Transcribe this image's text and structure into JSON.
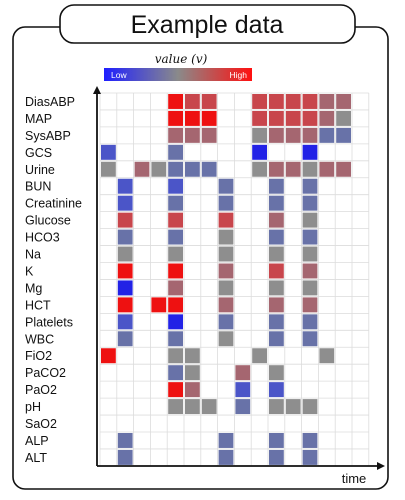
{
  "title": "Example data",
  "legend": {
    "title": "value (v)",
    "low_label": "Low",
    "high_label": "High",
    "low_color": "#1f1fff",
    "mid_color": "#8a8a8a",
    "high_color": "#ff1010"
  },
  "x_axis_label": "time",
  "rows": [
    "DiasABP",
    "MAP",
    "SysABP",
    "GCS",
    "Urine",
    "BUN",
    "Creatinine",
    "Glucose",
    "HCO3",
    "Na",
    "K",
    "Mg",
    "HCT",
    "Platelets",
    "WBC",
    "FiO2",
    "PaCO2",
    "PaO2",
    "pH",
    "SaO2",
    "ALP",
    "ALT"
  ],
  "palette": {
    "red": "#ee1111",
    "dred": "#c8464c",
    "mauve": "#a56670",
    "gray": "#8e8e8e",
    "slate": "#6872a8",
    "blue": "#4b55c8",
    "dblue": "#2222e6"
  },
  "cells": [
    [
      "DiasABP",
      4,
      "red"
    ],
    [
      "DiasABP",
      5,
      "dred"
    ],
    [
      "DiasABP",
      6,
      "dred"
    ],
    [
      "DiasABP",
      9,
      "dred"
    ],
    [
      "DiasABP",
      10,
      "dred"
    ],
    [
      "DiasABP",
      11,
      "dred"
    ],
    [
      "DiasABP",
      12,
      "dred"
    ],
    [
      "DiasABP",
      13,
      "mauve"
    ],
    [
      "DiasABP",
      14,
      "mauve"
    ],
    [
      "MAP",
      4,
      "red"
    ],
    [
      "MAP",
      5,
      "red"
    ],
    [
      "MAP",
      6,
      "red"
    ],
    [
      "MAP",
      9,
      "dred"
    ],
    [
      "MAP",
      10,
      "dred"
    ],
    [
      "MAP",
      11,
      "dred"
    ],
    [
      "MAP",
      12,
      "dred"
    ],
    [
      "MAP",
      13,
      "mauve"
    ],
    [
      "MAP",
      14,
      "gray"
    ],
    [
      "SysABP",
      4,
      "mauve"
    ],
    [
      "SysABP",
      5,
      "mauve"
    ],
    [
      "SysABP",
      6,
      "mauve"
    ],
    [
      "SysABP",
      9,
      "gray"
    ],
    [
      "SysABP",
      10,
      "mauve"
    ],
    [
      "SysABP",
      11,
      "mauve"
    ],
    [
      "SysABP",
      12,
      "mauve"
    ],
    [
      "SysABP",
      13,
      "slate"
    ],
    [
      "SysABP",
      14,
      "slate"
    ],
    [
      "GCS",
      0,
      "blue"
    ],
    [
      "GCS",
      4,
      "slate"
    ],
    [
      "GCS",
      9,
      "dblue"
    ],
    [
      "GCS",
      12,
      "dblue"
    ],
    [
      "Urine",
      0,
      "gray"
    ],
    [
      "Urine",
      2,
      "mauve"
    ],
    [
      "Urine",
      3,
      "gray"
    ],
    [
      "Urine",
      4,
      "slate"
    ],
    [
      "Urine",
      5,
      "slate"
    ],
    [
      "Urine",
      6,
      "slate"
    ],
    [
      "Urine",
      9,
      "gray"
    ],
    [
      "Urine",
      10,
      "mauve"
    ],
    [
      "Urine",
      11,
      "mauve"
    ],
    [
      "Urine",
      12,
      "gray"
    ],
    [
      "Urine",
      13,
      "mauve"
    ],
    [
      "Urine",
      14,
      "mauve"
    ],
    [
      "BUN",
      1,
      "blue"
    ],
    [
      "BUN",
      4,
      "blue"
    ],
    [
      "BUN",
      7,
      "slate"
    ],
    [
      "BUN",
      10,
      "slate"
    ],
    [
      "BUN",
      12,
      "slate"
    ],
    [
      "Creatinine",
      1,
      "blue"
    ],
    [
      "Creatinine",
      4,
      "slate"
    ],
    [
      "Creatinine",
      7,
      "slate"
    ],
    [
      "Creatinine",
      10,
      "slate"
    ],
    [
      "Creatinine",
      12,
      "slate"
    ],
    [
      "Glucose",
      1,
      "dred"
    ],
    [
      "Glucose",
      4,
      "dred"
    ],
    [
      "Glucose",
      7,
      "dred"
    ],
    [
      "Glucose",
      10,
      "mauve"
    ],
    [
      "Glucose",
      12,
      "gray"
    ],
    [
      "HCO3",
      1,
      "slate"
    ],
    [
      "HCO3",
      4,
      "slate"
    ],
    [
      "HCO3",
      7,
      "gray"
    ],
    [
      "HCO3",
      10,
      "slate"
    ],
    [
      "HCO3",
      12,
      "slate"
    ],
    [
      "Na",
      1,
      "gray"
    ],
    [
      "Na",
      4,
      "gray"
    ],
    [
      "Na",
      7,
      "gray"
    ],
    [
      "Na",
      10,
      "gray"
    ],
    [
      "Na",
      12,
      "gray"
    ],
    [
      "K",
      1,
      "red"
    ],
    [
      "K",
      4,
      "red"
    ],
    [
      "K",
      7,
      "mauve"
    ],
    [
      "K",
      10,
      "dred"
    ],
    [
      "K",
      12,
      "mauve"
    ],
    [
      "Mg",
      1,
      "dblue"
    ],
    [
      "Mg",
      4,
      "mauve"
    ],
    [
      "Mg",
      7,
      "gray"
    ],
    [
      "Mg",
      10,
      "gray"
    ],
    [
      "Mg",
      12,
      "gray"
    ],
    [
      "HCT",
      1,
      "red"
    ],
    [
      "HCT",
      3,
      "red"
    ],
    [
      "HCT",
      4,
      "red"
    ],
    [
      "HCT",
      7,
      "mauve"
    ],
    [
      "HCT",
      10,
      "mauve"
    ],
    [
      "HCT",
      12,
      "mauve"
    ],
    [
      "Platelets",
      1,
      "blue"
    ],
    [
      "Platelets",
      4,
      "dblue"
    ],
    [
      "Platelets",
      7,
      "slate"
    ],
    [
      "Platelets",
      10,
      "slate"
    ],
    [
      "Platelets",
      12,
      "slate"
    ],
    [
      "WBC",
      1,
      "slate"
    ],
    [
      "WBC",
      4,
      "slate"
    ],
    [
      "WBC",
      7,
      "gray"
    ],
    [
      "WBC",
      10,
      "slate"
    ],
    [
      "WBC",
      12,
      "slate"
    ],
    [
      "FiO2",
      0,
      "red"
    ],
    [
      "FiO2",
      4,
      "gray"
    ],
    [
      "FiO2",
      5,
      "gray"
    ],
    [
      "FiO2",
      9,
      "gray"
    ],
    [
      "FiO2",
      13,
      "gray"
    ],
    [
      "PaCO2",
      4,
      "slate"
    ],
    [
      "PaCO2",
      5,
      "gray"
    ],
    [
      "PaCO2",
      8,
      "mauve"
    ],
    [
      "PaCO2",
      10,
      "gray"
    ],
    [
      "PaO2",
      4,
      "red"
    ],
    [
      "PaO2",
      5,
      "mauve"
    ],
    [
      "PaO2",
      8,
      "blue"
    ],
    [
      "PaO2",
      10,
      "blue"
    ],
    [
      "pH",
      4,
      "gray"
    ],
    [
      "pH",
      5,
      "gray"
    ],
    [
      "pH",
      6,
      "gray"
    ],
    [
      "pH",
      8,
      "slate"
    ],
    [
      "pH",
      10,
      "gray"
    ],
    [
      "pH",
      11,
      "gray"
    ],
    [
      "pH",
      12,
      "gray"
    ],
    [
      "ALP",
      1,
      "slate"
    ],
    [
      "ALP",
      7,
      "slate"
    ],
    [
      "ALP",
      10,
      "slate"
    ],
    [
      "ALP",
      12,
      "slate"
    ],
    [
      "ALT",
      1,
      "slate"
    ],
    [
      "ALT",
      7,
      "slate"
    ],
    [
      "ALT",
      10,
      "slate"
    ],
    [
      "ALT",
      12,
      "slate"
    ]
  ]
}
